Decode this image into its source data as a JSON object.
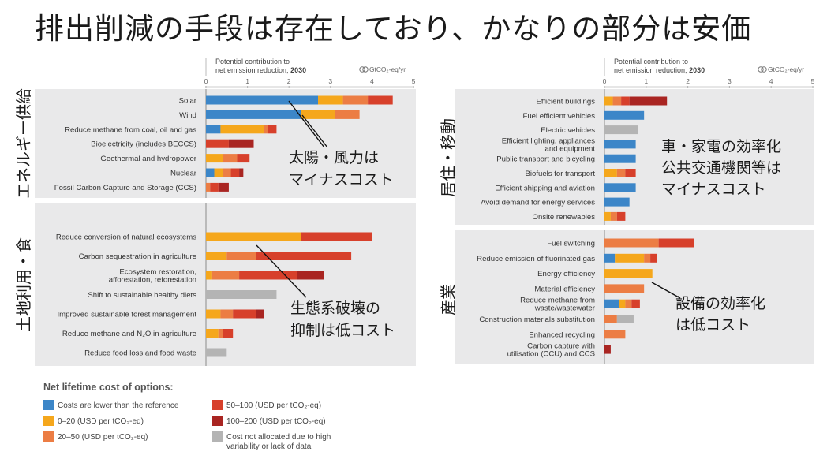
{
  "title": "排出削減の手段は存在しており、かなりの部分は安価",
  "colors": {
    "panel_bg": "#e9e9ea",
    "blue": "#3c86c8",
    "yellow": "#f5a71c",
    "orange": "#ec7d44",
    "red": "#d7402b",
    "darkred": "#a92522",
    "grey": "#b4b4b4"
  },
  "axis": {
    "header_line1": "Potential contribution to",
    "header_line2": "net emission reduction, ",
    "header_year": "2030",
    "unit": "GtCO₂-eq/yr",
    "ticks": [
      "0",
      "1",
      "2",
      "3",
      "4",
      "5"
    ]
  },
  "legend": {
    "title": "Net lifetime cost of options:",
    "items": [
      {
        "key": "blue",
        "label": "Costs are lower than the reference"
      },
      {
        "key": "yellow",
        "label": "0–20 (USD per tCO₂-eq)"
      },
      {
        "key": "orange",
        "label": "20–50 (USD per tCO₂-eq)"
      },
      {
        "key": "red",
        "label": "50–100 (USD per tCO₂-eq)"
      },
      {
        "key": "darkred",
        "label": "100–200 (USD per tCO₂-eq)"
      },
      {
        "key": "grey",
        "label": "Cost not allocated due to high",
        "label2": "variability or lack of data"
      }
    ]
  },
  "chart_data": [
    {
      "type": "bar",
      "orientation": "horizontal-stacked",
      "xlim": [
        0,
        5
      ],
      "series_keys": [
        "blue",
        "yellow",
        "orange",
        "red",
        "darkred",
        "grey"
      ],
      "panels": [
        {
          "label": "エネルギー供給",
          "annotation": [
            "太陽・風力は",
            "マイナスコスト"
          ],
          "rows": [
            {
              "label": [
                "Solar"
              ],
              "segments": [
                2.7,
                0.6,
                0.6,
                0.6,
                0,
                0
              ]
            },
            {
              "label": [
                "Wind"
              ],
              "segments": [
                2.3,
                0.8,
                0.6,
                0,
                0,
                0
              ]
            },
            {
              "label": [
                "Reduce methane from coal, oil and gas"
              ],
              "segments": [
                0.35,
                1.05,
                0.1,
                0.2,
                0,
                0
              ]
            },
            {
              "label": [
                "Bioelectricity (includes BECCS)"
              ],
              "segments": [
                0,
                0,
                0,
                0.55,
                0.6,
                0
              ]
            },
            {
              "label": [
                "Geothermal and hydropower"
              ],
              "segments": [
                0,
                0.4,
                0.35,
                0.3,
                0,
                0
              ]
            },
            {
              "label": [
                "Nuclear"
              ],
              "segments": [
                0.2,
                0.2,
                0.2,
                0.2,
                0.1,
                0
              ]
            },
            {
              "label": [
                "Fossil Carbon Capture and Storage (CCS)"
              ],
              "segments": [
                0,
                0,
                0.1,
                0.2,
                0.25,
                0
              ]
            }
          ]
        },
        {
          "label": "土地利用・食",
          "annotation": [
            "生態系破壊の",
            "抑制は低コスト"
          ],
          "rows": [
            {
              "label": [
                "Reduce conversion of natural ecosystems"
              ],
              "segments": [
                0,
                2.3,
                0,
                1.7,
                0,
                0
              ]
            },
            {
              "label": [
                "Carbon sequestration in agriculture"
              ],
              "segments": [
                0,
                0.5,
                0.7,
                2.3,
                0,
                0
              ]
            },
            {
              "label": [
                "Ecosystem restoration,",
                "afforestation, reforestation"
              ],
              "segments": [
                0,
                0.15,
                0.65,
                1.4,
                0.65,
                0
              ]
            },
            {
              "label": [
                "Shift to sustainable healthy diets"
              ],
              "segments": [
                0,
                0,
                0,
                0,
                0,
                1.7
              ]
            },
            {
              "label": [
                "Improved sustainable forest management"
              ],
              "segments": [
                0,
                0.35,
                0.3,
                0.55,
                0.2,
                0
              ]
            },
            {
              "label": [
                "Reduce methane and N₂O in agriculture"
              ],
              "segments": [
                0,
                0.3,
                0.1,
                0.25,
                0,
                0
              ]
            },
            {
              "label": [
                "Reduce food loss and food waste"
              ],
              "segments": [
                0,
                0,
                0,
                0,
                0,
                0.5
              ]
            }
          ]
        }
      ]
    },
    {
      "type": "bar",
      "orientation": "horizontal-stacked",
      "xlim": [
        0,
        5
      ],
      "series_keys": [
        "blue",
        "yellow",
        "orange",
        "red",
        "darkred",
        "grey"
      ],
      "panels": [
        {
          "label": "居住・移動",
          "annotation": [
            "車・家電の効率化",
            "公共交通機関等は",
            "マイナスコスト"
          ],
          "rows": [
            {
              "label": [
                "Efficient buildings"
              ],
              "segments": [
                0,
                0.2,
                0.2,
                0.2,
                0.9,
                0
              ]
            },
            {
              "label": [
                "Fuel efficient vehicles"
              ],
              "segments": [
                0.95,
                0,
                0,
                0,
                0,
                0
              ]
            },
            {
              "label": [
                "Electric vehicles"
              ],
              "segments": [
                0,
                0,
                0,
                0,
                0,
                0.8
              ]
            },
            {
              "label": [
                "Efficient lighting, appliances",
                "and equipment"
              ],
              "segments": [
                0.75,
                0,
                0,
                0,
                0,
                0
              ]
            },
            {
              "label": [
                "Public transport and bicycling"
              ],
              "segments": [
                0.75,
                0,
                0,
                0,
                0,
                0
              ]
            },
            {
              "label": [
                "Biofuels for transport"
              ],
              "segments": [
                0,
                0.3,
                0.2,
                0.25,
                0,
                0
              ]
            },
            {
              "label": [
                "Efficient shipping and aviation"
              ],
              "segments": [
                0.75,
                0,
                0,
                0,
                0,
                0
              ]
            },
            {
              "label": [
                "Avoid demand for energy services"
              ],
              "segments": [
                0.6,
                0,
                0,
                0,
                0,
                0
              ]
            },
            {
              "label": [
                "Onsite renewables"
              ],
              "segments": [
                0,
                0.15,
                0.15,
                0.2,
                0,
                0
              ]
            }
          ]
        },
        {
          "label": "産業",
          "annotation": [
            "設備の効率化",
            "は低コスト"
          ],
          "rows": [
            {
              "label": [
                "Fuel switching"
              ],
              "segments": [
                0,
                0,
                1.3,
                0.85,
                0,
                0
              ]
            },
            {
              "label": [
                "Reduce emission of fluorinated gas"
              ],
              "segments": [
                0.25,
                0.7,
                0.15,
                0.15,
                0,
                0
              ]
            },
            {
              "label": [
                "Energy efficiency"
              ],
              "segments": [
                0,
                1.15,
                0,
                0,
                0,
                0
              ]
            },
            {
              "label": [
                "Material efficiency"
              ],
              "segments": [
                0,
                0,
                0.95,
                0,
                0,
                0
              ]
            },
            {
              "label": [
                "Reduce methane from",
                "waste/wastewater"
              ],
              "segments": [
                0.35,
                0.15,
                0.15,
                0.2,
                0,
                0
              ]
            },
            {
              "label": [
                "Construction materials substitution"
              ],
              "segments": [
                0,
                0,
                0.3,
                0,
                0,
                0.4
              ]
            },
            {
              "label": [
                "Enhanced recycling"
              ],
              "segments": [
                0,
                0,
                0.5,
                0,
                0,
                0
              ]
            },
            {
              "label": [
                "Carbon capture with",
                "utilisation (CCU) and CCS"
              ],
              "segments": [
                0,
                0,
                0,
                0,
                0.15,
                0
              ]
            }
          ]
        }
      ]
    }
  ]
}
